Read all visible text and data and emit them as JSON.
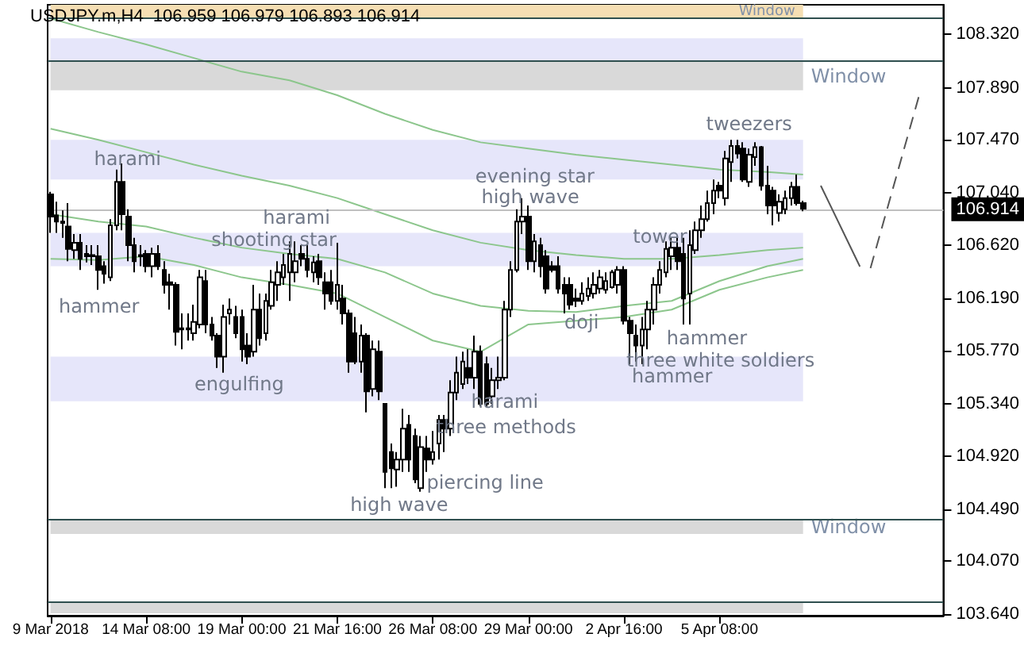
{
  "chart_data": {
    "type": "candlestick",
    "title": "USDJPY.m,H4  106.959 106.979 106.893 106.914",
    "categories": [
      "9 Mar 2018",
      null,
      null,
      null,
      null,
      null,
      null,
      null,
      null,
      null,
      null,
      null,
      null,
      null,
      null,
      null,
      "14 Mar 08:00",
      null,
      null,
      null,
      null,
      null,
      null,
      null,
      null,
      null,
      null,
      null,
      null,
      null,
      null,
      null,
      "19 Mar 00:00",
      null,
      null,
      null,
      null,
      null,
      null,
      null,
      null,
      null,
      null,
      null,
      null,
      null,
      null,
      null,
      "21 Mar 16:00",
      null,
      null,
      null,
      null,
      null,
      null,
      null,
      null,
      null,
      null,
      null,
      null,
      null,
      null,
      null,
      "26 Mar 08:00",
      null,
      null,
      null,
      null,
      null,
      null,
      null,
      null,
      null,
      null,
      null,
      null,
      null,
      null,
      null,
      "29 Mar 00:00",
      null,
      null,
      null,
      null,
      null,
      null,
      null,
      null,
      null,
      null,
      null,
      null,
      null,
      null,
      null,
      "2 Apr 16:00",
      null,
      null,
      null,
      null,
      null,
      null,
      null,
      null,
      null,
      null,
      null,
      null,
      null,
      null,
      null,
      "5 Apr 08:00",
      null,
      null,
      null,
      null,
      null,
      null,
      null,
      null,
      null,
      null,
      null,
      null,
      null,
      null,
      null,
      null,
      null,
      null,
      null,
      null,
      null,
      null,
      null,
      null,
      null,
      null,
      null,
      null,
      null,
      null,
      null,
      null,
      null,
      null,
      null,
      null,
      null
    ],
    "ohlc": [
      [
        107.03,
        107.05,
        106.72,
        106.85
      ],
      [
        106.86,
        106.97,
        106.72,
        106.81
      ],
      [
        106.81,
        106.9,
        106.68,
        106.8
      ],
      [
        106.77,
        106.96,
        106.49,
        106.59
      ],
      [
        106.58,
        106.71,
        106.51,
        106.64
      ],
      [
        106.64,
        106.71,
        106.42,
        106.51
      ],
      [
        106.55,
        106.62,
        106.48,
        106.53
      ],
      [
        106.53,
        106.62,
        106.46,
        106.54
      ],
      [
        106.53,
        106.62,
        106.26,
        106.42
      ],
      [
        106.45,
        106.49,
        106.31,
        106.39
      ],
      [
        106.36,
        106.83,
        106.33,
        106.78
      ],
      [
        106.78,
        107.23,
        106.74,
        107.13
      ],
      [
        107.13,
        107.28,
        106.74,
        106.87
      ],
      [
        106.85,
        106.91,
        106.49,
        106.62
      ],
      [
        106.62,
        106.68,
        106.4,
        106.49
      ],
      [
        106.53,
        106.62,
        106.45,
        106.54
      ],
      [
        106.55,
        106.58,
        106.4,
        106.45
      ],
      [
        106.45,
        106.6,
        106.36,
        106.55
      ],
      [
        106.55,
        106.62,
        106.42,
        106.45
      ],
      [
        106.42,
        106.49,
        106.23,
        106.3
      ],
      [
        106.32,
        106.39,
        106.1,
        106.3
      ],
      [
        106.3,
        106.32,
        105.81,
        105.92
      ],
      [
        105.95,
        106.07,
        105.78,
        105.94
      ],
      [
        105.94,
        106.07,
        105.85,
        105.95
      ],
      [
        105.91,
        106.14,
        105.85,
        106.0
      ],
      [
        105.98,
        106.42,
        105.95,
        106.36
      ],
      [
        106.33,
        106.42,
        105.91,
        105.98
      ],
      [
        105.98,
        106.04,
        105.85,
        105.89
      ],
      [
        105.89,
        105.91,
        105.63,
        105.72
      ],
      [
        105.72,
        106.14,
        105.59,
        106.04
      ],
      [
        106.07,
        106.19,
        105.98,
        106.1
      ],
      [
        106.04,
        106.13,
        105.87,
        105.91
      ],
      [
        106.04,
        106.1,
        105.68,
        105.78
      ],
      [
        105.81,
        105.91,
        105.66,
        105.72
      ],
      [
        105.76,
        106.3,
        105.72,
        106.1
      ],
      [
        106.1,
        106.23,
        105.81,
        105.87
      ],
      [
        105.91,
        106.23,
        105.85,
        106.17
      ],
      [
        106.13,
        106.42,
        106.1,
        106.32
      ],
      [
        106.3,
        106.49,
        106.17,
        106.4
      ],
      [
        106.36,
        106.55,
        106.3,
        106.46
      ],
      [
        106.4,
        106.65,
        106.17,
        106.55
      ],
      [
        106.4,
        106.65,
        106.32,
        106.49
      ],
      [
        106.55,
        106.62,
        106.45,
        106.51
      ],
      [
        106.51,
        106.62,
        106.36,
        106.42
      ],
      [
        106.4,
        106.53,
        106.32,
        106.48
      ],
      [
        106.49,
        106.55,
        106.3,
        106.36
      ],
      [
        106.32,
        106.4,
        106.1,
        106.23
      ],
      [
        106.32,
        106.42,
        106.14,
        106.17
      ],
      [
        106.17,
        106.64,
        106.1,
        106.3
      ],
      [
        106.19,
        106.3,
        105.98,
        106.07
      ],
      [
        106.07,
        106.1,
        105.59,
        105.68
      ],
      [
        105.91,
        106.04,
        105.66,
        105.68
      ],
      [
        105.68,
        105.98,
        105.59,
        105.89
      ],
      [
        105.89,
        105.91,
        105.27,
        105.44
      ],
      [
        105.46,
        105.85,
        105.4,
        105.78
      ],
      [
        105.76,
        105.85,
        105.37,
        105.44
      ],
      [
        105.34,
        105.34,
        104.66,
        104.79
      ],
      [
        104.95,
        105.02,
        104.66,
        104.82
      ],
      [
        104.81,
        104.95,
        104.67,
        104.89
      ],
      [
        104.89,
        105.3,
        104.79,
        105.14
      ],
      [
        105.17,
        105.25,
        104.79,
        104.89
      ],
      [
        105.08,
        105.14,
        104.7,
        104.73
      ],
      [
        104.66,
        105.08,
        104.63,
        104.99
      ],
      [
        104.98,
        105.08,
        104.79,
        104.89
      ],
      [
        104.89,
        105.12,
        104.85,
        104.95
      ],
      [
        105.02,
        105.25,
        104.89,
        105.21
      ],
      [
        105.21,
        105.25,
        104.95,
        105.14
      ],
      [
        105.14,
        105.53,
        105.08,
        105.43
      ],
      [
        105.43,
        105.72,
        105.37,
        105.59
      ],
      [
        105.5,
        105.76,
        105.46,
        105.68
      ],
      [
        105.63,
        105.78,
        105.5,
        105.55
      ],
      [
        105.55,
        105.89,
        105.46,
        105.76
      ],
      [
        105.76,
        105.81,
        105.32,
        105.34
      ],
      [
        105.66,
        105.72,
        105.32,
        105.34
      ],
      [
        105.4,
        105.63,
        105.34,
        105.53
      ],
      [
        105.53,
        105.72,
        105.46,
        105.55
      ],
      [
        105.55,
        106.17,
        105.53,
        106.1
      ],
      [
        106.1,
        106.49,
        106.04,
        106.42
      ],
      [
        106.42,
        106.91,
        106.4,
        106.81
      ],
      [
        106.81,
        107.0,
        106.71,
        106.85
      ],
      [
        106.85,
        106.94,
        106.42,
        106.49
      ],
      [
        106.49,
        106.71,
        106.4,
        106.65
      ],
      [
        106.62,
        106.68,
        106.36,
        106.45
      ],
      [
        106.53,
        106.58,
        106.23,
        106.27
      ],
      [
        106.45,
        106.49,
        106.4,
        106.42
      ],
      [
        106.45,
        106.53,
        106.23,
        106.27
      ],
      [
        106.3,
        106.36,
        106.07,
        106.23
      ],
      [
        106.3,
        106.36,
        106.1,
        106.14
      ],
      [
        106.19,
        106.27,
        106.12,
        106.17
      ],
      [
        106.17,
        106.32,
        106.14,
        106.23
      ],
      [
        106.21,
        106.36,
        106.17,
        106.27
      ],
      [
        106.23,
        106.4,
        106.19,
        106.3
      ],
      [
        106.27,
        106.42,
        106.23,
        106.36
      ],
      [
        106.26,
        106.4,
        106.23,
        106.33
      ],
      [
        106.28,
        106.42,
        106.27,
        106.4
      ],
      [
        106.3,
        106.45,
        106.23,
        106.42
      ],
      [
        106.42,
        106.45,
        105.98,
        106.01
      ],
      [
        106.01,
        106.04,
        105.66,
        105.91
      ],
      [
        105.89,
        105.98,
        105.68,
        105.81
      ],
      [
        105.81,
        106.04,
        105.66,
        105.94
      ],
      [
        105.94,
        106.17,
        105.78,
        106.1
      ],
      [
        106.1,
        106.36,
        105.98,
        106.3
      ],
      [
        106.3,
        106.49,
        106.23,
        106.42
      ],
      [
        106.4,
        106.65,
        106.36,
        106.59
      ],
      [
        106.53,
        106.68,
        106.42,
        106.6
      ],
      [
        106.6,
        106.68,
        106.42,
        106.49
      ],
      [
        106.55,
        106.68,
        105.98,
        106.19
      ],
      [
        106.23,
        106.74,
        105.98,
        106.62
      ],
      [
        106.58,
        106.81,
        106.55,
        106.74
      ],
      [
        106.74,
        106.94,
        106.68,
        106.83
      ],
      [
        106.83,
        107.06,
        106.81,
        106.96
      ],
      [
        106.96,
        107.15,
        106.87,
        107.06
      ],
      [
        107.1,
        107.13,
        107.0,
        107.06
      ],
      [
        107.0,
        107.38,
        106.94,
        107.32
      ],
      [
        107.29,
        107.47,
        107.13,
        107.42
      ],
      [
        107.42,
        107.47,
        107.32,
        107.36
      ],
      [
        107.4,
        107.45,
        107.13,
        107.15
      ],
      [
        107.13,
        107.4,
        107.09,
        107.35
      ],
      [
        107.33,
        107.45,
        107.26,
        107.41
      ],
      [
        107.41,
        107.42,
        107.06,
        107.1
      ],
      [
        107.1,
        107.26,
        106.87,
        106.94
      ],
      [
        107.06,
        107.09,
        106.78,
        106.94
      ],
      [
        106.88,
        107.03,
        106.81,
        106.97
      ],
      [
        106.91,
        107.06,
        106.87,
        107.0
      ],
      [
        107.0,
        107.13,
        106.94,
        107.09
      ],
      [
        107.09,
        107.19,
        106.94,
        106.96
      ],
      [
        106.959,
        106.979,
        106.893,
        106.914
      ],
      null,
      null,
      null,
      null,
      null,
      null,
      null,
      null,
      null,
      null,
      null,
      null,
      null,
      null,
      null,
      null,
      null,
      null,
      null,
      null,
      null,
      null,
      null
    ],
    "series": [
      {
        "type": "line",
        "color": "#8cc68c",
        "values": [
          108.45,
          null,
          null,
          null,
          null,
          null,
          null,
          null,
          108.34,
          null,
          null,
          null,
          null,
          null,
          null,
          null,
          108.24,
          null,
          null,
          null,
          null,
          null,
          null,
          null,
          108.13,
          null,
          null,
          null,
          null,
          null,
          null,
          null,
          108.02,
          null,
          null,
          null,
          null,
          null,
          null,
          null,
          107.95,
          null,
          null,
          null,
          null,
          null,
          null,
          null,
          107.83,
          null,
          null,
          null,
          null,
          null,
          null,
          null,
          107.68,
          null,
          null,
          null,
          null,
          null,
          null,
          null,
          107.55,
          null,
          null,
          null,
          null,
          null,
          null,
          null,
          107.45,
          null,
          null,
          null,
          null,
          null,
          null,
          null,
          107.4,
          null,
          null,
          null,
          null,
          null,
          null,
          null,
          107.35,
          null,
          null,
          null,
          null,
          null,
          null,
          null,
          107.31,
          null,
          null,
          null,
          null,
          null,
          null,
          null,
          107.27,
          null,
          null,
          null,
          null,
          null,
          null,
          null,
          107.23,
          null,
          null,
          null,
          null,
          null,
          null,
          null,
          107.21,
          null,
          null,
          null,
          null,
          null,
          107.19,
          null,
          null,
          null,
          null,
          null,
          null,
          null,
          null,
          null,
          null,
          null,
          null,
          null,
          null,
          null,
          null,
          null,
          null,
          null,
          null,
          null,
          null,
          null
        ]
      },
      {
        "type": "line",
        "color": "#8cc68c",
        "values": [
          107.56,
          null,
          null,
          null,
          null,
          null,
          null,
          null,
          107.47,
          null,
          null,
          null,
          null,
          null,
          null,
          null,
          107.37,
          null,
          null,
          null,
          null,
          null,
          null,
          null,
          107.27,
          null,
          null,
          null,
          null,
          null,
          null,
          null,
          107.18,
          null,
          null,
          null,
          null,
          null,
          null,
          null,
          107.1,
          null,
          null,
          null,
          null,
          null,
          null,
          null,
          107.0,
          null,
          null,
          null,
          null,
          null,
          null,
          null,
          106.87,
          null,
          null,
          null,
          null,
          null,
          null,
          null,
          106.74,
          null,
          null,
          null,
          null,
          null,
          null,
          null,
          106.64,
          null,
          null,
          null,
          null,
          null,
          null,
          null,
          106.58,
          null,
          null,
          null,
          null,
          null,
          null,
          null,
          106.54,
          null,
          null,
          null,
          null,
          null,
          null,
          null,
          106.51,
          null,
          null,
          null,
          null,
          null,
          null,
          null,
          106.51,
          null,
          null,
          null,
          null,
          null,
          null,
          null,
          106.54,
          null,
          null,
          null,
          null,
          null,
          null,
          null,
          106.58,
          null,
          null,
          null,
          null,
          null,
          106.6,
          null,
          null,
          null,
          null,
          null,
          null,
          null,
          null,
          null,
          null,
          null,
          null,
          null,
          null,
          null,
          null,
          null,
          null,
          null,
          null,
          null,
          null,
          null
        ]
      },
      {
        "type": "line",
        "color": "#8cc68c",
        "values": [
          106.87,
          null,
          null,
          null,
          null,
          null,
          null,
          null,
          106.81,
          null,
          null,
          null,
          null,
          null,
          null,
          null,
          106.77,
          null,
          null,
          null,
          null,
          null,
          null,
          null,
          106.68,
          null,
          null,
          null,
          null,
          null,
          null,
          null,
          106.6,
          null,
          null,
          null,
          null,
          null,
          null,
          null,
          106.55,
          null,
          null,
          null,
          null,
          null,
          null,
          null,
          106.51,
          null,
          null,
          null,
          null,
          null,
          null,
          null,
          106.4,
          null,
          null,
          null,
          null,
          null,
          null,
          null,
          106.23,
          null,
          null,
          null,
          null,
          null,
          null,
          null,
          106.13,
          null,
          null,
          null,
          null,
          null,
          null,
          null,
          106.09,
          null,
          null,
          null,
          null,
          null,
          null,
          null,
          106.08,
          null,
          null,
          null,
          null,
          null,
          null,
          null,
          106.13,
          null,
          null,
          null,
          null,
          null,
          null,
          null,
          106.17,
          null,
          null,
          null,
          null,
          null,
          null,
          null,
          106.33,
          null,
          null,
          null,
          null,
          null,
          null,
          null,
          106.45,
          null,
          null,
          null,
          null,
          null,
          106.51,
          null,
          null,
          null,
          null,
          null,
          null,
          null,
          null,
          null,
          null,
          null,
          null,
          null,
          null,
          null,
          null,
          null,
          null,
          null,
          null,
          null,
          null,
          null
        ]
      },
      {
        "type": "line",
        "color": "#8cc68c",
        "values": [
          106.51,
          null,
          null,
          null,
          null,
          null,
          null,
          null,
          106.5,
          null,
          null,
          null,
          null,
          null,
          null,
          null,
          106.53,
          null,
          null,
          null,
          null,
          null,
          null,
          null,
          106.46,
          null,
          null,
          null,
          null,
          null,
          null,
          null,
          106.36,
          null,
          null,
          null,
          null,
          null,
          null,
          null,
          106.3,
          null,
          null,
          null,
          null,
          null,
          null,
          null,
          106.23,
          null,
          null,
          null,
          null,
          null,
          null,
          null,
          106.04,
          null,
          null,
          null,
          null,
          null,
          null,
          null,
          105.85,
          null,
          null,
          null,
          null,
          null,
          null,
          null,
          105.76,
          null,
          null,
          null,
          null,
          null,
          null,
          null,
          105.98,
          null,
          null,
          null,
          null,
          null,
          null,
          null,
          106.01,
          null,
          null,
          null,
          null,
          null,
          null,
          null,
          106.04,
          null,
          null,
          null,
          null,
          null,
          null,
          null,
          106.1,
          null,
          null,
          null,
          null,
          null,
          null,
          null,
          106.26,
          null,
          null,
          null,
          null,
          null,
          null,
          null,
          106.36,
          null,
          null,
          null,
          null,
          null,
          106.42,
          null,
          null,
          null,
          null,
          null,
          null,
          null,
          null,
          null,
          null,
          null,
          null,
          null,
          null,
          null,
          null,
          null,
          null,
          null,
          null,
          null,
          null,
          null
        ]
      }
    ],
    "ylim": [
      103.63,
      108.56
    ],
    "yticks": [
      {
        "value": 108.32,
        "label": "108.320"
      },
      {
        "value": 107.89,
        "label": "107.890"
      },
      {
        "value": 107.47,
        "label": "107.470"
      },
      {
        "value": 107.04,
        "label": "107.040"
      },
      {
        "value": 106.62,
        "label": "106.620"
      },
      {
        "value": 106.19,
        "label": "106.190"
      },
      {
        "value": 105.77,
        "label": "105.770"
      },
      {
        "value": 105.34,
        "label": "105.340"
      },
      {
        "value": 104.92,
        "label": "104.920"
      },
      {
        "value": 104.49,
        "label": "104.490"
      },
      {
        "value": 104.07,
        "label": "104.070"
      },
      {
        "value": 103.64,
        "label": "103.640"
      }
    ],
    "bands": [
      {
        "axis": "y",
        "from": 108.45,
        "to": 108.56,
        "label": "Window",
        "color": "#f5deb3"
      },
      {
        "axis": "y",
        "from": 108.11,
        "to": 108.29,
        "label": null,
        "color": "#e6e6fa"
      },
      {
        "axis": "y",
        "from": 107.87,
        "to": 108.1,
        "label": "Window",
        "color": "#d9d9d9"
      },
      {
        "axis": "y",
        "from": 107.15,
        "to": 107.47,
        "label": null,
        "color": "#e6e6fa"
      },
      {
        "axis": "y",
        "from": 106.45,
        "to": 106.72,
        "label": null,
        "color": "#e6e6fa"
      },
      {
        "axis": "y",
        "from": 105.36,
        "to": 105.72,
        "label": null,
        "color": "#e6e6fa"
      },
      {
        "axis": "y",
        "from": 104.29,
        "to": 104.41,
        "label": "Window",
        "color": "#d9d9d9"
      },
      {
        "axis": "y",
        "from": 103.65,
        "to": 103.74,
        "label": null,
        "color": "#d9d9d9"
      }
    ],
    "ref_lines": [
      {
        "axis": "y",
        "value": 108.45,
        "label": null,
        "color": "#2f4f4f"
      },
      {
        "axis": "y",
        "value": 108.11,
        "label": null,
        "color": "#2f4f4f"
      },
      {
        "axis": "y",
        "value": 104.41,
        "label": null,
        "color": "#2f4f4f"
      },
      {
        "axis": "y",
        "value": 103.74,
        "label": null,
        "color": "#2f4f4f"
      },
      {
        "axis": "y",
        "value": 106.914,
        "label": "106.914",
        "color": "#c0c0c0"
      }
    ],
    "annotations": [
      "harami",
      "harami",
      "shooting star",
      "hammer",
      "engulfing",
      "evening star",
      "high wave",
      "tower",
      "tweezers",
      "doji",
      "hammer",
      "three white soldiers",
      "hammer",
      "harami",
      "three methods",
      "piercing line",
      "high wave"
    ]
  }
}
